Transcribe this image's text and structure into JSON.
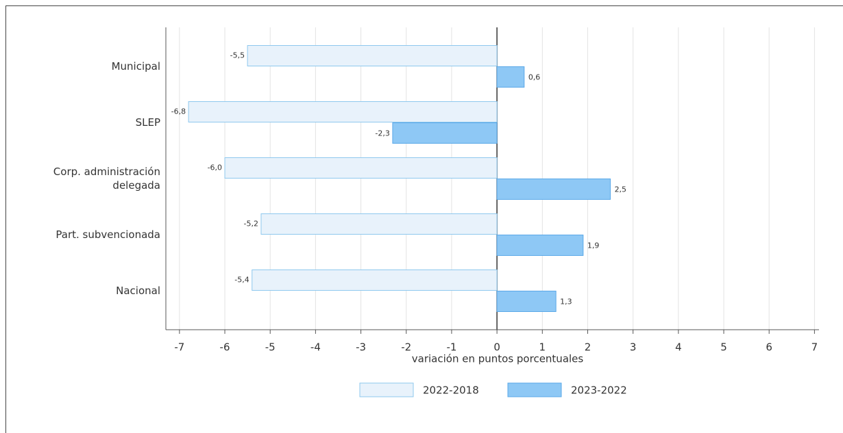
{
  "chart_data": {
    "type": "bar",
    "orientation": "horizontal",
    "categories": [
      "Municipal",
      "SLEP",
      "Corp. administración delegada",
      "Part. subvencionada",
      "Nacional"
    ],
    "series": [
      {
        "name": "2022-2018",
        "color": "#e8f2fb",
        "edge": "#8ec8ee",
        "values": [
          -5.5,
          -6.8,
          -6.0,
          -5.2,
          -5.4
        ],
        "value_labels": [
          "-5,5",
          "-6,8",
          "-6,0",
          "-5,2",
          "-5,4"
        ]
      },
      {
        "name": "2023-2022",
        "color": "#8ec8f5",
        "edge": "#5aa8e8",
        "values": [
          0.6,
          -2.3,
          2.5,
          1.9,
          1.3
        ],
        "value_labels": [
          "0,6",
          "-2,3",
          "2,5",
          "1,9",
          "1,3"
        ]
      }
    ],
    "x_label": "variación en puntos porcentuales",
    "xlim": [
      -7.3,
      7.1
    ],
    "xticks": [
      -7,
      -6,
      -5,
      -4,
      -3,
      -2,
      -1,
      0,
      1,
      2,
      3,
      4,
      5,
      6,
      7
    ],
    "grid": true,
    "legend": "bottom"
  }
}
